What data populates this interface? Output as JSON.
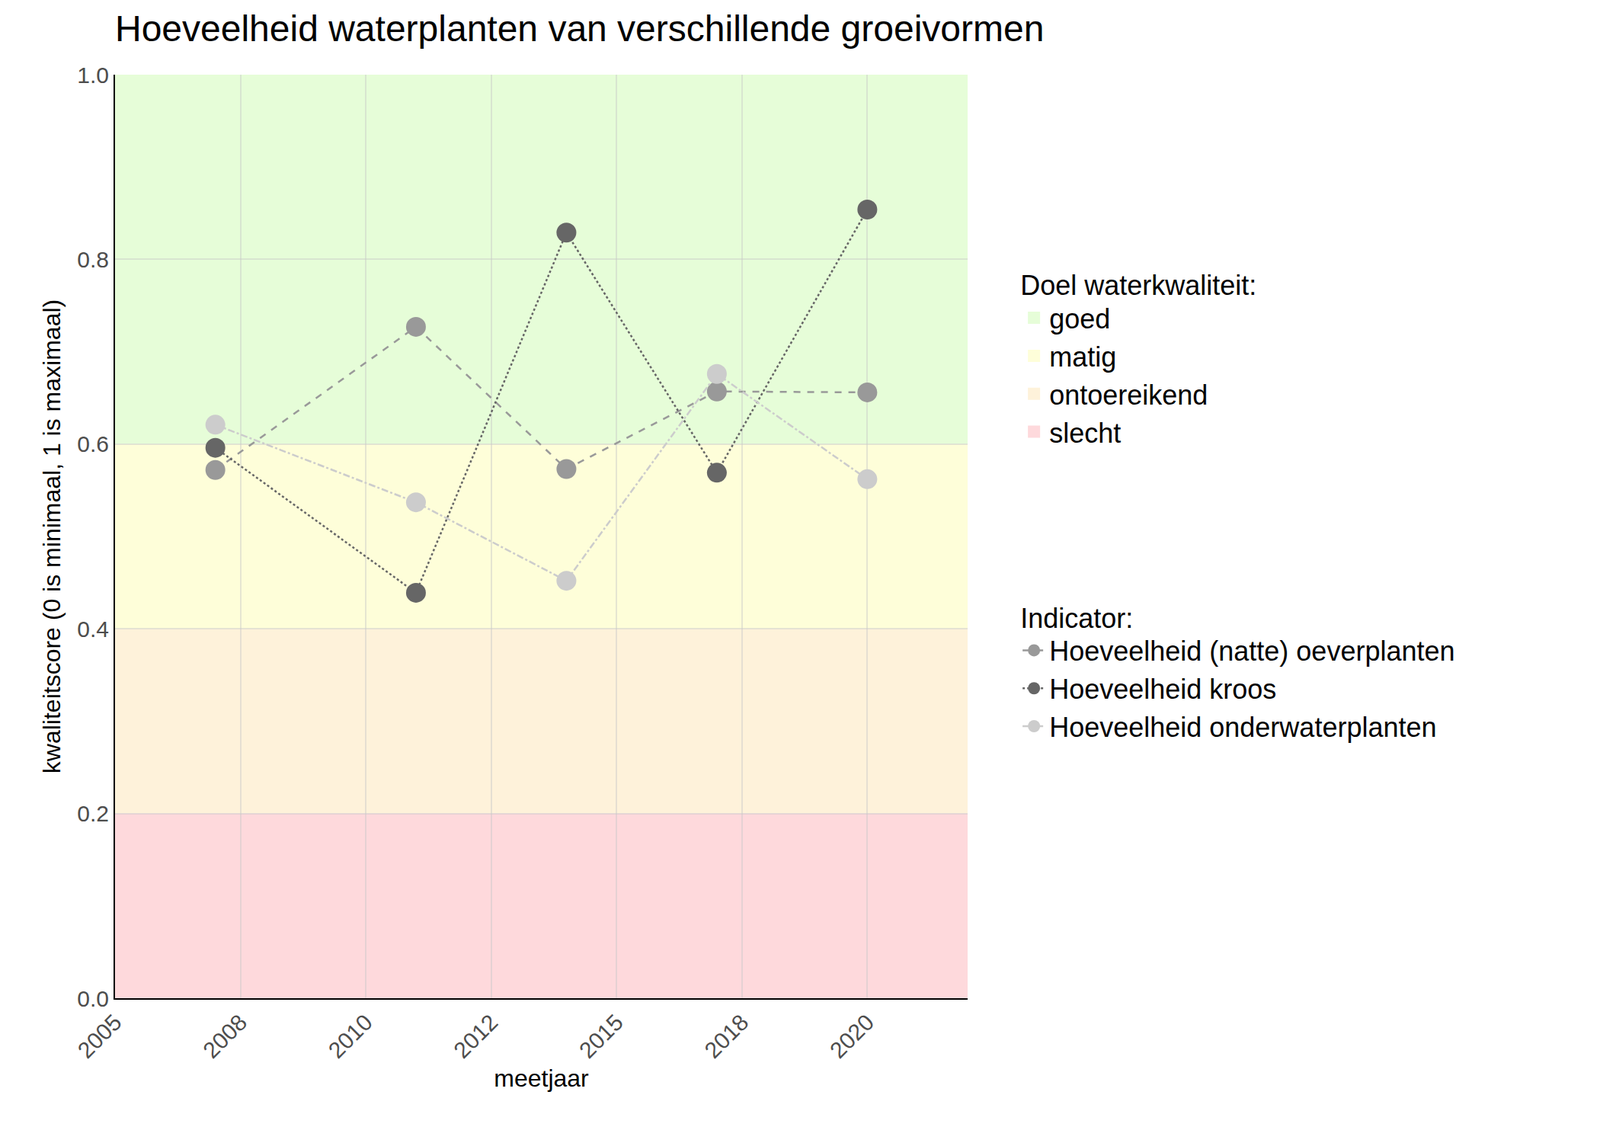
{
  "chart_data": {
    "type": "line",
    "title": "Hoeveelheid waterplanten van verschillende groeivormen",
    "x_label": "meetjaar",
    "y_label": "kwaliteitscore (0 is minimaal, 1 is maximaal)",
    "x": [
      2007,
      2011,
      2014,
      2017,
      2020
    ],
    "series_title": "Indicator:",
    "series": [
      {
        "name": "Hoeveelheid (natte) oeverplanten",
        "color": "#999999",
        "line_style": "dash",
        "marker": "circle",
        "values": [
          0.572,
          0.727,
          0.573,
          0.657,
          0.656
        ]
      },
      {
        "name": "Hoeveelheid kroos",
        "color": "#666666",
        "line_style": "dot",
        "marker": "circle",
        "values": [
          0.596,
          0.439,
          0.829,
          0.569,
          0.854
        ]
      },
      {
        "name": "Hoeveelheid onderwaterplanten",
        "color": "#cccccc",
        "line_style": "dashdot",
        "marker": "circle",
        "values": [
          0.621,
          0.537,
          0.452,
          0.676,
          0.562
        ]
      }
    ],
    "bands_title": "Doel waterkwaliteit:",
    "bands": [
      {
        "name": "goed",
        "range": [
          0.6,
          1.0
        ],
        "color": "#e6fdd8"
      },
      {
        "name": "matig",
        "range": [
          0.4,
          0.6
        ],
        "color": "#fefed9"
      },
      {
        "name": "ontoereikend",
        "range": [
          0.2,
          0.4
        ],
        "color": "#fef2da"
      },
      {
        "name": "slecht",
        "range": [
          0.0,
          0.2
        ],
        "color": "#fed9dc"
      }
    ],
    "xlim": [
      2005,
      2022
    ],
    "xticks": [
      2005,
      {
        "value": 2007.5,
        "label": "2008"
      },
      2010,
      {
        "value": 2012.5,
        "label": "2012"
      },
      2015,
      {
        "value": 2017.5,
        "label": "2018"
      },
      2020
    ],
    "ylim": [
      0,
      1
    ],
    "yticks": [
      {
        "value": 0,
        "label": "0.0"
      },
      0.2,
      0.4,
      0.6,
      0.8,
      {
        "value": 1,
        "label": "1.0"
      }
    ],
    "grid": true
  }
}
